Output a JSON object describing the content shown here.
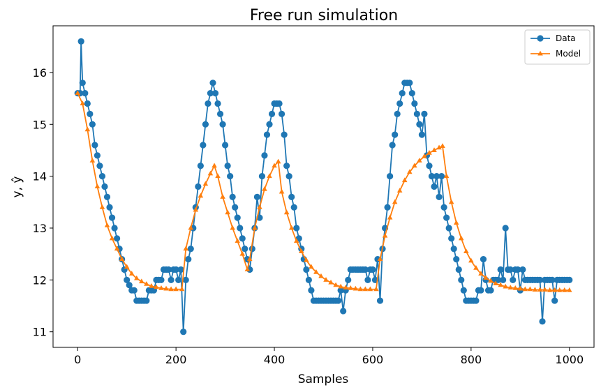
{
  "chart_data": {
    "type": "line",
    "title": "Free run simulation",
    "xlabel": "Samples",
    "ylabel": "y, ŷ",
    "xlim": [
      -50,
      1050
    ],
    "ylim": [
      10.7,
      16.9
    ],
    "xticks": [
      0,
      200,
      400,
      600,
      800,
      1000
    ],
    "yticks": [
      11,
      12,
      13,
      14,
      15,
      16
    ],
    "legend_position": "top-right",
    "series": [
      {
        "name": "Data",
        "color": "#1f77b4",
        "marker": "circle",
        "points": [
          [
            0,
            15.6
          ],
          [
            5,
            15.6
          ],
          [
            7,
            16.6
          ],
          [
            10,
            15.8
          ],
          [
            15,
            15.6
          ],
          [
            20,
            15.4
          ],
          [
            25,
            15.2
          ],
          [
            30,
            15.0
          ],
          [
            35,
            14.6
          ],
          [
            40,
            14.4
          ],
          [
            45,
            14.2
          ],
          [
            50,
            14.0
          ],
          [
            55,
            13.8
          ],
          [
            60,
            13.6
          ],
          [
            65,
            13.4
          ],
          [
            70,
            13.2
          ],
          [
            75,
            13.0
          ],
          [
            80,
            12.8
          ],
          [
            85,
            12.6
          ],
          [
            90,
            12.4
          ],
          [
            95,
            12.2
          ],
          [
            100,
            12.0
          ],
          [
            105,
            11.9
          ],
          [
            110,
            11.8
          ],
          [
            115,
            11.8
          ],
          [
            120,
            11.6
          ],
          [
            125,
            11.6
          ],
          [
            130,
            11.6
          ],
          [
            135,
            11.6
          ],
          [
            140,
            11.6
          ],
          [
            145,
            11.8
          ],
          [
            150,
            11.8
          ],
          [
            155,
            11.8
          ],
          [
            160,
            12.0
          ],
          [
            165,
            12.0
          ],
          [
            170,
            12.0
          ],
          [
            175,
            12.2
          ],
          [
            180,
            12.2
          ],
          [
            185,
            12.2
          ],
          [
            190,
            12.0
          ],
          [
            195,
            12.2
          ],
          [
            200,
            12.2
          ],
          [
            205,
            12.0
          ],
          [
            210,
            12.2
          ],
          [
            215,
            11.0
          ],
          [
            220,
            12.0
          ],
          [
            225,
            12.4
          ],
          [
            230,
            12.6
          ],
          [
            235,
            13.0
          ],
          [
            240,
            13.4
          ],
          [
            245,
            13.8
          ],
          [
            250,
            14.2
          ],
          [
            255,
            14.6
          ],
          [
            260,
            15.0
          ],
          [
            265,
            15.4
          ],
          [
            270,
            15.6
          ],
          [
            275,
            15.8
          ],
          [
            280,
            15.6
          ],
          [
            285,
            15.4
          ],
          [
            290,
            15.2
          ],
          [
            295,
            15.0
          ],
          [
            300,
            14.6
          ],
          [
            305,
            14.2
          ],
          [
            310,
            14.0
          ],
          [
            315,
            13.6
          ],
          [
            320,
            13.4
          ],
          [
            325,
            13.2
          ],
          [
            330,
            13.0
          ],
          [
            335,
            12.8
          ],
          [
            340,
            12.6
          ],
          [
            345,
            12.4
          ],
          [
            350,
            12.2
          ],
          [
            355,
            12.6
          ],
          [
            360,
            13.0
          ],
          [
            365,
            13.6
          ],
          [
            370,
            13.2
          ],
          [
            375,
            14.0
          ],
          [
            380,
            14.4
          ],
          [
            385,
            14.8
          ],
          [
            390,
            15.0
          ],
          [
            395,
            15.2
          ],
          [
            400,
            15.4
          ],
          [
            405,
            15.4
          ],
          [
            410,
            15.4
          ],
          [
            415,
            15.2
          ],
          [
            420,
            14.8
          ],
          [
            425,
            14.2
          ],
          [
            430,
            14.0
          ],
          [
            435,
            13.6
          ],
          [
            440,
            13.4
          ],
          [
            445,
            13.0
          ],
          [
            450,
            12.8
          ],
          [
            455,
            12.6
          ],
          [
            460,
            12.4
          ],
          [
            465,
            12.2
          ],
          [
            470,
            12.0
          ],
          [
            475,
            11.8
          ],
          [
            480,
            11.6
          ],
          [
            485,
            11.6
          ],
          [
            490,
            11.6
          ],
          [
            495,
            11.6
          ],
          [
            500,
            11.6
          ],
          [
            505,
            11.6
          ],
          [
            510,
            11.6
          ],
          [
            515,
            11.6
          ],
          [
            520,
            11.6
          ],
          [
            525,
            11.6
          ],
          [
            530,
            11.6
          ],
          [
            535,
            11.8
          ],
          [
            540,
            11.4
          ],
          [
            545,
            11.8
          ],
          [
            550,
            12.0
          ],
          [
            555,
            12.2
          ],
          [
            560,
            12.2
          ],
          [
            565,
            12.2
          ],
          [
            570,
            12.2
          ],
          [
            575,
            12.2
          ],
          [
            580,
            12.2
          ],
          [
            585,
            12.2
          ],
          [
            590,
            12.0
          ],
          [
            595,
            12.2
          ],
          [
            600,
            12.2
          ],
          [
            605,
            12.0
          ],
          [
            610,
            12.4
          ],
          [
            615,
            11.6
          ],
          [
            620,
            12.6
          ],
          [
            625,
            13.0
          ],
          [
            630,
            13.4
          ],
          [
            635,
            14.0
          ],
          [
            640,
            14.6
          ],
          [
            645,
            14.8
          ],
          [
            650,
            15.2
          ],
          [
            655,
            15.4
          ],
          [
            660,
            15.6
          ],
          [
            665,
            15.8
          ],
          [
            670,
            15.8
          ],
          [
            675,
            15.8
          ],
          [
            680,
            15.6
          ],
          [
            685,
            15.4
          ],
          [
            690,
            15.2
          ],
          [
            695,
            15.0
          ],
          [
            700,
            14.8
          ],
          [
            705,
            15.2
          ],
          [
            710,
            14.4
          ],
          [
            715,
            14.2
          ],
          [
            720,
            14.0
          ],
          [
            725,
            13.8
          ],
          [
            730,
            14.0
          ],
          [
            735,
            13.6
          ],
          [
            740,
            14.0
          ],
          [
            745,
            13.4
          ],
          [
            750,
            13.2
          ],
          [
            755,
            13.0
          ],
          [
            760,
            12.8
          ],
          [
            765,
            12.6
          ],
          [
            770,
            12.4
          ],
          [
            775,
            12.2
          ],
          [
            780,
            12.0
          ],
          [
            785,
            11.8
          ],
          [
            790,
            11.6
          ],
          [
            795,
            11.6
          ],
          [
            800,
            11.6
          ],
          [
            805,
            11.6
          ],
          [
            810,
            11.6
          ],
          [
            815,
            11.8
          ],
          [
            820,
            11.8
          ],
          [
            825,
            12.4
          ],
          [
            830,
            12.0
          ],
          [
            835,
            11.8
          ],
          [
            840,
            11.8
          ],
          [
            845,
            12.0
          ],
          [
            850,
            12.0
          ],
          [
            855,
            12.0
          ],
          [
            860,
            12.2
          ],
          [
            865,
            12.0
          ],
          [
            870,
            13.0
          ],
          [
            875,
            12.2
          ],
          [
            880,
            12.2
          ],
          [
            885,
            12.0
          ],
          [
            890,
            12.2
          ],
          [
            895,
            12.2
          ],
          [
            900,
            11.8
          ],
          [
            905,
            12.2
          ],
          [
            910,
            12.0
          ],
          [
            915,
            12.0
          ],
          [
            920,
            12.0
          ],
          [
            925,
            12.0
          ],
          [
            930,
            12.0
          ],
          [
            935,
            12.0
          ],
          [
            940,
            12.0
          ],
          [
            945,
            11.2
          ],
          [
            950,
            12.0
          ],
          [
            955,
            12.0
          ],
          [
            960,
            12.0
          ],
          [
            965,
            12.0
          ],
          [
            970,
            11.6
          ],
          [
            975,
            12.0
          ],
          [
            980,
            12.0
          ],
          [
            985,
            12.0
          ],
          [
            990,
            12.0
          ],
          [
            995,
            12.0
          ],
          [
            1000,
            12.0
          ]
        ]
      },
      {
        "name": "Model",
        "color": "#ff7f0e",
        "marker": "triangle",
        "points": [
          [
            0,
            15.6
          ],
          [
            10,
            15.4
          ],
          [
            20,
            14.9
          ],
          [
            30,
            14.3
          ],
          [
            40,
            13.8
          ],
          [
            50,
            13.4
          ],
          [
            60,
            13.05
          ],
          [
            70,
            12.8
          ],
          [
            80,
            12.6
          ],
          [
            90,
            12.4
          ],
          [
            100,
            12.25
          ],
          [
            110,
            12.12
          ],
          [
            120,
            12.03
          ],
          [
            130,
            11.97
          ],
          [
            140,
            11.92
          ],
          [
            150,
            11.88
          ],
          [
            160,
            11.86
          ],
          [
            170,
            11.84
          ],
          [
            180,
            11.83
          ],
          [
            190,
            11.82
          ],
          [
            200,
            11.82
          ],
          [
            212,
            11.82
          ],
          [
            220,
            12.6
          ],
          [
            230,
            13.0
          ],
          [
            240,
            13.35
          ],
          [
            250,
            13.62
          ],
          [
            260,
            13.85
          ],
          [
            270,
            14.05
          ],
          [
            278,
            14.2
          ],
          [
            285,
            14.0
          ],
          [
            295,
            13.6
          ],
          [
            305,
            13.3
          ],
          [
            315,
            13.0
          ],
          [
            325,
            12.75
          ],
          [
            335,
            12.5
          ],
          [
            345,
            12.2
          ],
          [
            350,
            12.4
          ],
          [
            360,
            13.0
          ],
          [
            370,
            13.4
          ],
          [
            380,
            13.75
          ],
          [
            390,
            14.0
          ],
          [
            400,
            14.2
          ],
          [
            408,
            14.28
          ],
          [
            415,
            13.7
          ],
          [
            425,
            13.3
          ],
          [
            435,
            13.0
          ],
          [
            445,
            12.75
          ],
          [
            455,
            12.55
          ],
          [
            465,
            12.38
          ],
          [
            475,
            12.25
          ],
          [
            485,
            12.15
          ],
          [
            495,
            12.07
          ],
          [
            505,
            12.0
          ],
          [
            515,
            11.95
          ],
          [
            525,
            11.9
          ],
          [
            535,
            11.87
          ],
          [
            545,
            11.85
          ],
          [
            555,
            11.84
          ],
          [
            565,
            11.83
          ],
          [
            575,
            11.82
          ],
          [
            585,
            11.82
          ],
          [
            595,
            11.82
          ],
          [
            607,
            11.82
          ],
          [
            615,
            12.4
          ],
          [
            625,
            12.85
          ],
          [
            635,
            13.2
          ],
          [
            645,
            13.5
          ],
          [
            655,
            13.72
          ],
          [
            665,
            13.92
          ],
          [
            675,
            14.08
          ],
          [
            685,
            14.2
          ],
          [
            695,
            14.3
          ],
          [
            705,
            14.38
          ],
          [
            715,
            14.45
          ],
          [
            725,
            14.5
          ],
          [
            735,
            14.55
          ],
          [
            742,
            14.58
          ],
          [
            750,
            14.0
          ],
          [
            760,
            13.5
          ],
          [
            770,
            13.1
          ],
          [
            780,
            12.8
          ],
          [
            790,
            12.55
          ],
          [
            800,
            12.37
          ],
          [
            810,
            12.23
          ],
          [
            820,
            12.12
          ],
          [
            830,
            12.04
          ],
          [
            840,
            11.98
          ],
          [
            850,
            11.93
          ],
          [
            860,
            11.9
          ],
          [
            870,
            11.87
          ],
          [
            880,
            11.85
          ],
          [
            890,
            11.84
          ],
          [
            900,
            11.83
          ],
          [
            910,
            11.82
          ],
          [
            920,
            11.82
          ],
          [
            930,
            11.81
          ],
          [
            940,
            11.81
          ],
          [
            950,
            11.81
          ],
          [
            960,
            11.8
          ],
          [
            970,
            11.8
          ],
          [
            980,
            11.8
          ],
          [
            990,
            11.8
          ],
          [
            1000,
            11.8
          ]
        ]
      }
    ]
  }
}
